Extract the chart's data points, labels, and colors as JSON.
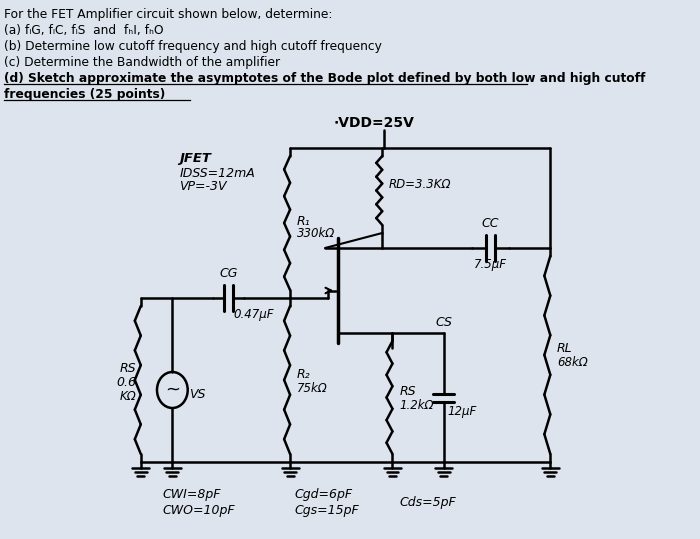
{
  "bg_color": "#cdd5e0",
  "paper_color": "#dde4ed",
  "text_color": "#111111",
  "header": {
    "line1": "For the FET Amplifier circuit shown below, determine:",
    "line2": "(a) fₗG, fₗC, fₗS  and  fₕI, fₕO",
    "line3": "(b) Determine low cutoff frequency and high cutoff frequency",
    "line4": "(c) Determine the Bandwidth of the amplifier",
    "line5": "(d) Sketch approximate the asymptotes of the Bode plot defined by both low and high cutoff",
    "line6": "frequencies (25 points)"
  },
  "vdd": "VDD=25V",
  "jfet_line1": "JFET",
  "jfet_line2": "IDSS=12mA",
  "jfet_line3": "VP=-3V",
  "r1_label": "R₁\n330kΩ",
  "rd_label": "RD=3.3KΩ",
  "cc_label": "CC\n7.5μF",
  "cg_label": "CG\n0.47μF",
  "rs_label": "RS\n0.6\nKΩ",
  "r2_label": "R₂\n75kΩ",
  "rs2_label": "RS\n1.2kΩ",
  "cs_label": "CS\n12μF",
  "rl_label": "RL\n68kΩ",
  "vs_label": "VS",
  "bottom1a": "CWI=8pF",
  "bottom1b": "CWO=10pF",
  "bottom2a": "Cgd=6pF",
  "bottom2b": "Cgs=15pF",
  "bottom3": "Cds=5pF"
}
